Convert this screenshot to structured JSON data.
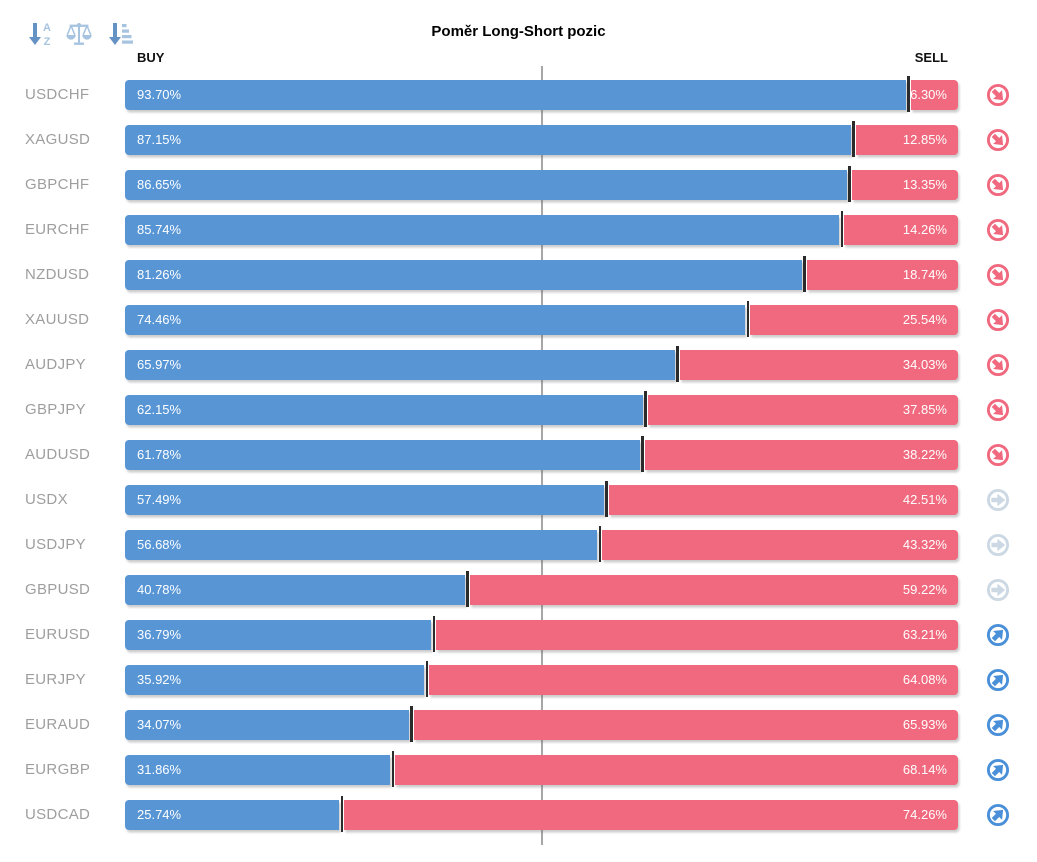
{
  "title": "Poměr Long-Short pozic",
  "columns": {
    "buy": "BUY",
    "sell": "SELL"
  },
  "toolbar": {
    "icons": [
      {
        "name": "sort-alpha-down-icon"
      },
      {
        "name": "balance-scale-icon"
      },
      {
        "name": "sort-amount-down-icon"
      }
    ]
  },
  "colors": {
    "buy": "#5795d5",
    "sell": "#f0697e",
    "divider": "#2b2b2b",
    "grid": "#a6a6a6",
    "pair_label": "#9e9e9e",
    "signal_down": "#f0697e",
    "signal_neutral": "#ccd9e4",
    "signal_up": "#4a90d9",
    "toolbar_dark": "#6592c4",
    "toolbar_light": "#a6c3e0"
  },
  "rows": [
    {
      "pair": "USDCHF",
      "buy": 93.7,
      "sell": 6.3,
      "buy_label": "93.70%",
      "sell_label": "6.30%",
      "signal": "down"
    },
    {
      "pair": "XAGUSD",
      "buy": 87.15,
      "sell": 12.85,
      "buy_label": "87.15%",
      "sell_label": "12.85%",
      "signal": "down"
    },
    {
      "pair": "GBPCHF",
      "buy": 86.65,
      "sell": 13.35,
      "buy_label": "86.65%",
      "sell_label": "13.35%",
      "signal": "down"
    },
    {
      "pair": "EURCHF",
      "buy": 85.74,
      "sell": 14.26,
      "buy_label": "85.74%",
      "sell_label": "14.26%",
      "signal": "down"
    },
    {
      "pair": "NZDUSD",
      "buy": 81.26,
      "sell": 18.74,
      "buy_label": "81.26%",
      "sell_label": "18.74%",
      "signal": "down"
    },
    {
      "pair": "XAUUSD",
      "buy": 74.46,
      "sell": 25.54,
      "buy_label": "74.46%",
      "sell_label": "25.54%",
      "signal": "down"
    },
    {
      "pair": "AUDJPY",
      "buy": 65.97,
      "sell": 34.03,
      "buy_label": "65.97%",
      "sell_label": "34.03%",
      "signal": "down"
    },
    {
      "pair": "GBPJPY",
      "buy": 62.15,
      "sell": 37.85,
      "buy_label": "62.15%",
      "sell_label": "37.85%",
      "signal": "down"
    },
    {
      "pair": "AUDUSD",
      "buy": 61.78,
      "sell": 38.22,
      "buy_label": "61.78%",
      "sell_label": "38.22%",
      "signal": "down"
    },
    {
      "pair": "USDX",
      "buy": 57.49,
      "sell": 42.51,
      "buy_label": "57.49%",
      "sell_label": "42.51%",
      "signal": "neutral"
    },
    {
      "pair": "USDJPY",
      "buy": 56.68,
      "sell": 43.32,
      "buy_label": "56.68%",
      "sell_label": "43.32%",
      "signal": "neutral"
    },
    {
      "pair": "GBPUSD",
      "buy": 40.78,
      "sell": 59.22,
      "buy_label": "40.78%",
      "sell_label": "59.22%",
      "signal": "neutral"
    },
    {
      "pair": "EURUSD",
      "buy": 36.79,
      "sell": 63.21,
      "buy_label": "36.79%",
      "sell_label": "63.21%",
      "signal": "up"
    },
    {
      "pair": "EURJPY",
      "buy": 35.92,
      "sell": 64.08,
      "buy_label": "35.92%",
      "sell_label": "64.08%",
      "signal": "up"
    },
    {
      "pair": "EURAUD",
      "buy": 34.07,
      "sell": 65.93,
      "buy_label": "34.07%",
      "sell_label": "65.93%",
      "signal": "up"
    },
    {
      "pair": "EURGBP",
      "buy": 31.86,
      "sell": 68.14,
      "buy_label": "31.86%",
      "sell_label": "68.14%",
      "signal": "up"
    },
    {
      "pair": "USDCAD",
      "buy": 25.74,
      "sell": 74.26,
      "buy_label": "25.74%",
      "sell_label": "74.26%",
      "signal": "up"
    }
  ],
  "chart_data": {
    "type": "bar",
    "orientation": "horizontal",
    "stacked": true,
    "title": "Poměr Long-Short pozic",
    "categories": [
      "USDCHF",
      "XAGUSD",
      "GBPCHF",
      "EURCHF",
      "NZDUSD",
      "XAUUSD",
      "AUDJPY",
      "GBPJPY",
      "AUDUSD",
      "USDX",
      "USDJPY",
      "GBPUSD",
      "EURUSD",
      "EURJPY",
      "EURAUD",
      "EURGBP",
      "USDCAD"
    ],
    "series": [
      {
        "name": "BUY",
        "color": "#5795d5",
        "values": [
          93.7,
          87.15,
          86.65,
          85.74,
          81.26,
          74.46,
          65.97,
          62.15,
          61.78,
          57.49,
          56.68,
          40.78,
          36.79,
          35.92,
          34.07,
          31.86,
          25.74
        ]
      },
      {
        "name": "SELL",
        "color": "#f0697e",
        "values": [
          6.3,
          12.85,
          13.35,
          14.26,
          18.74,
          25.54,
          34.03,
          37.85,
          38.22,
          42.51,
          43.32,
          59.22,
          63.21,
          64.08,
          65.93,
          68.14,
          74.26
        ]
      }
    ],
    "xlim": [
      0,
      100
    ],
    "center_reference_line": 50,
    "grid": false,
    "legend_position": "none",
    "value_labels": "inside-bars",
    "signal_icons": [
      "down",
      "down",
      "down",
      "down",
      "down",
      "down",
      "down",
      "down",
      "down",
      "neutral",
      "neutral",
      "neutral",
      "up",
      "up",
      "up",
      "up",
      "up"
    ]
  }
}
